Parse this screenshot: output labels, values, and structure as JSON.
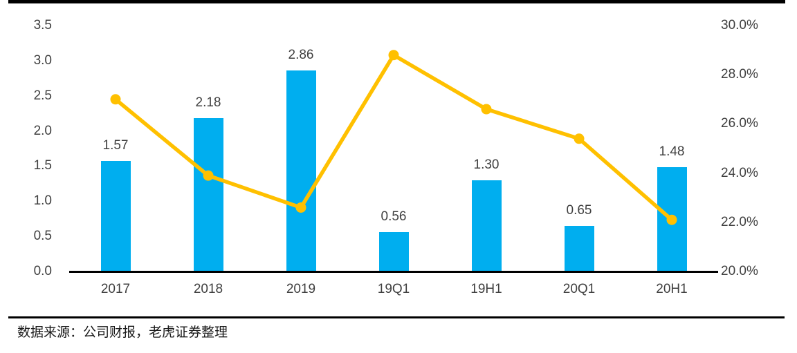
{
  "footer": {
    "source_text": "数据来源：公司财报，老虎证券整理"
  },
  "colors": {
    "bar": "#00AEEF",
    "line": "#FFC000",
    "axis": "#000000",
    "tick_text": "#3f3f3f",
    "label_text": "#404040"
  },
  "chart_data": {
    "type": "bar",
    "subtype": "bar-with-line-dual-axis",
    "categories": [
      "2017",
      "2018",
      "2019",
      "19Q1",
      "19H1",
      "20Q1",
      "20H1"
    ],
    "series": [
      {
        "name": "bar-values",
        "type": "bar",
        "axis": "left",
        "values": [
          1.57,
          2.18,
          2.86,
          0.56,
          1.3,
          0.65,
          1.48
        ],
        "labels": [
          "1.57",
          "2.18",
          "2.86",
          "0.56",
          "1.30",
          "0.65",
          "1.48"
        ],
        "color": "#00AEEF"
      },
      {
        "name": "line-percentage",
        "type": "line",
        "axis": "right",
        "values": [
          27.0,
          23.9,
          22.6,
          28.8,
          26.6,
          25.4,
          22.1
        ],
        "estimated": true,
        "color": "#FFC000"
      }
    ],
    "left_axis": {
      "min": 0.0,
      "max": 3.5,
      "ticks": [
        "3.5",
        "3.0",
        "2.5",
        "2.0",
        "1.5",
        "1.0",
        "0.5",
        "0.0"
      ]
    },
    "right_axis": {
      "min": 20.0,
      "max": 30.0,
      "ticks": [
        "30.0%",
        "28.0%",
        "26.0%",
        "24.0%",
        "22.0%",
        "20.0%"
      ]
    },
    "grid": false,
    "legend": "none",
    "title": ""
  }
}
